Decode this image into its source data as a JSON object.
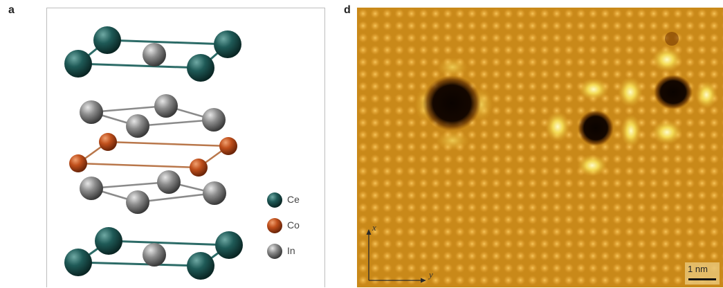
{
  "panels": {
    "a": {
      "letter": "a",
      "legend": [
        {
          "label": "Ce",
          "color": "#1f5a57"
        },
        {
          "label": "Co",
          "color": "#c0501c"
        },
        {
          "label": "In",
          "color": "#8c8c8c"
        }
      ]
    },
    "d": {
      "letter": "d",
      "axis_x_label": "x",
      "axis_y_label": "y",
      "scale_bar_label": "1 nm"
    }
  },
  "colors": {
    "ce": "#1f5a57",
    "co": "#c0501c",
    "in": "#8c8c8c",
    "stm_base": "#d6971e",
    "stm_dark": "#100600",
    "stm_bright": "#fff7a0"
  }
}
